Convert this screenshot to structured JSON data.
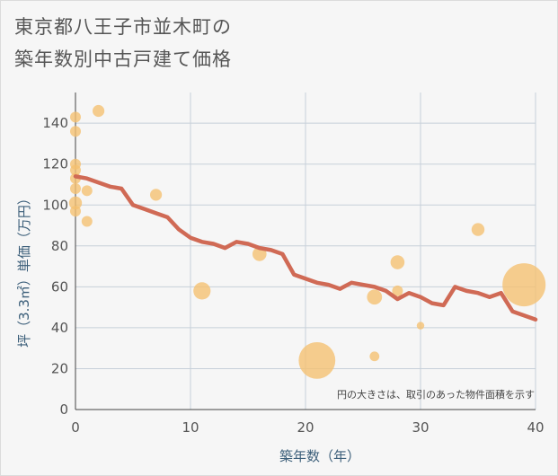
{
  "title_line1": "東京都八王子市並木町の",
  "title_line2": "築年数別中古戸建て価格",
  "chart_data": {
    "type": "scatter",
    "title": "東京都八王子市並木町の 築年数別中古戸建て価格",
    "xlabel": "築年数（年）",
    "ylabel": "坪（3.3㎡）単価（万円）",
    "xlim": [
      0,
      40
    ],
    "ylim": [
      0,
      155
    ],
    "xticks": [
      "0",
      "10",
      "20",
      "30",
      "40"
    ],
    "yticks": [
      "0",
      "20",
      "40",
      "60",
      "80",
      "100",
      "120",
      "140"
    ],
    "grid": true,
    "note": "円の大きさは、取引のあった物件面積を示す",
    "colors": {
      "points": "#f5c06f",
      "line": "#d06a55"
    },
    "points": [
      {
        "x": 0,
        "y": 143,
        "r": 1
      },
      {
        "x": 0,
        "y": 136,
        "r": 1
      },
      {
        "x": 0,
        "y": 120,
        "r": 1
      },
      {
        "x": 0,
        "y": 117,
        "r": 1
      },
      {
        "x": 0,
        "y": 113,
        "r": 1
      },
      {
        "x": 0,
        "y": 108,
        "r": 1
      },
      {
        "x": 0,
        "y": 101,
        "r": 1.2
      },
      {
        "x": 0,
        "y": 97,
        "r": 1
      },
      {
        "x": 1,
        "y": 107,
        "r": 1
      },
      {
        "x": 1,
        "y": 92,
        "r": 1
      },
      {
        "x": 2,
        "y": 146,
        "r": 1.1
      },
      {
        "x": 7,
        "y": 105,
        "r": 1.1
      },
      {
        "x": 11,
        "y": 58,
        "r": 1.6
      },
      {
        "x": 16,
        "y": 76,
        "r": 1.3
      },
      {
        "x": 21,
        "y": 24,
        "r": 3.4
      },
      {
        "x": 26,
        "y": 55,
        "r": 1.4
      },
      {
        "x": 26,
        "y": 26,
        "r": 0.9
      },
      {
        "x": 28,
        "y": 72,
        "r": 1.3
      },
      {
        "x": 28,
        "y": 58,
        "r": 1
      },
      {
        "x": 30,
        "y": 41,
        "r": 0.7
      },
      {
        "x": 35,
        "y": 88,
        "r": 1.2
      },
      {
        "x": 39,
        "y": 61,
        "r": 4.0
      }
    ],
    "line": [
      {
        "x": 0,
        "y": 114
      },
      {
        "x": 1,
        "y": 113
      },
      {
        "x": 2,
        "y": 111
      },
      {
        "x": 3,
        "y": 109
      },
      {
        "x": 4,
        "y": 108
      },
      {
        "x": 5,
        "y": 100
      },
      {
        "x": 6,
        "y": 98
      },
      {
        "x": 7,
        "y": 96
      },
      {
        "x": 8,
        "y": 94
      },
      {
        "x": 9,
        "y": 88
      },
      {
        "x": 10,
        "y": 84
      },
      {
        "x": 11,
        "y": 82
      },
      {
        "x": 12,
        "y": 81
      },
      {
        "x": 13,
        "y": 79
      },
      {
        "x": 14,
        "y": 82
      },
      {
        "x": 15,
        "y": 81
      },
      {
        "x": 16,
        "y": 79
      },
      {
        "x": 17,
        "y": 78
      },
      {
        "x": 18,
        "y": 76
      },
      {
        "x": 19,
        "y": 66
      },
      {
        "x": 20,
        "y": 64
      },
      {
        "x": 21,
        "y": 62
      },
      {
        "x": 22,
        "y": 61
      },
      {
        "x": 23,
        "y": 59
      },
      {
        "x": 24,
        "y": 62
      },
      {
        "x": 25,
        "y": 61
      },
      {
        "x": 26,
        "y": 60
      },
      {
        "x": 27,
        "y": 58
      },
      {
        "x": 28,
        "y": 54
      },
      {
        "x": 29,
        "y": 57
      },
      {
        "x": 30,
        "y": 55
      },
      {
        "x": 31,
        "y": 52
      },
      {
        "x": 32,
        "y": 51
      },
      {
        "x": 33,
        "y": 60
      },
      {
        "x": 34,
        "y": 58
      },
      {
        "x": 35,
        "y": 57
      },
      {
        "x": 36,
        "y": 55
      },
      {
        "x": 37,
        "y": 57
      },
      {
        "x": 38,
        "y": 48
      },
      {
        "x": 39,
        "y": 46
      },
      {
        "x": 40,
        "y": 44
      }
    ]
  }
}
